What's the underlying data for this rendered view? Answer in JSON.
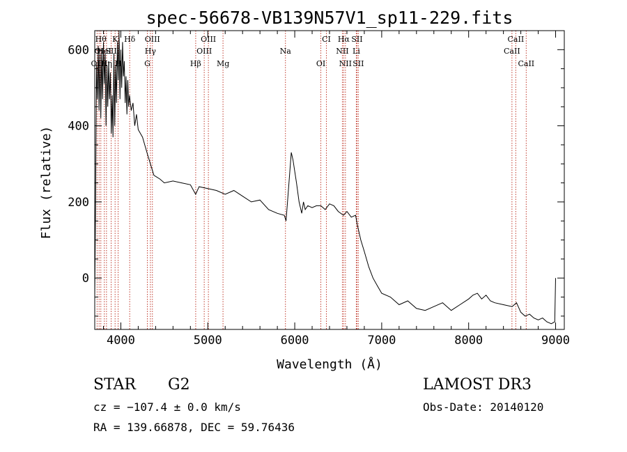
{
  "chart_data": {
    "type": "line",
    "title": "spec-56678-VB139N57V1_sp11-229.fits",
    "xlabel": "Wavelength (Å)",
    "ylabel": "Flux (relative)",
    "xlim": [
      3700,
      9100
    ],
    "ylim": [
      -135,
      650
    ],
    "xticks": [
      4000,
      5000,
      6000,
      7000,
      8000,
      9000
    ],
    "yticks": [
      0,
      200,
      400,
      600
    ],
    "series": [
      {
        "name": "spectrum",
        "x": [
          3700,
          3710,
          3720,
          3730,
          3740,
          3750,
          3760,
          3770,
          3780,
          3790,
          3800,
          3810,
          3820,
          3830,
          3840,
          3850,
          3860,
          3870,
          3880,
          3890,
          3900,
          3910,
          3920,
          3930,
          3940,
          3950,
          3960,
          3970,
          3980,
          3990,
          4000,
          4010,
          4020,
          4030,
          4040,
          4050,
          4060,
          4070,
          4080,
          4090,
          4100,
          4120,
          4140,
          4160,
          4180,
          4200,
          4250,
          4300,
          4340,
          4380,
          4450,
          4500,
          4600,
          4700,
          4800,
          4860,
          4900,
          5000,
          5100,
          5200,
          5300,
          5400,
          5500,
          5600,
          5700,
          5800,
          5880,
          5900,
          5920,
          5940,
          5960,
          5980,
          6000,
          6020,
          6050,
          6080,
          6100,
          6120,
          6150,
          6200,
          6250,
          6300,
          6350,
          6400,
          6450,
          6500,
          6560,
          6600,
          6650,
          6700,
          6720,
          6760,
          6800,
          6850,
          6900,
          6950,
          7000,
          7100,
          7200,
          7300,
          7400,
          7500,
          7600,
          7700,
          7800,
          7900,
          8000,
          8050,
          8100,
          8150,
          8200,
          8250,
          8300,
          8400,
          8500,
          8550,
          8600,
          8650,
          8700,
          8750,
          8800,
          8850,
          8900,
          8950,
          8990,
          9000
        ],
        "y": [
          -50,
          200,
          560,
          470,
          610,
          440,
          590,
          420,
          600,
          470,
          620,
          510,
          590,
          400,
          560,
          450,
          570,
          470,
          540,
          380,
          480,
          370,
          590,
          400,
          560,
          460,
          620,
          520,
          650,
          470,
          600,
          500,
          620,
          530,
          570,
          460,
          530,
          430,
          520,
          450,
          480,
          440,
          460,
          400,
          430,
          390,
          370,
          330,
          300,
          270,
          260,
          250,
          255,
          250,
          245,
          220,
          240,
          235,
          230,
          220,
          230,
          215,
          200,
          205,
          180,
          170,
          165,
          150,
          210,
          270,
          330,
          310,
          280,
          250,
          200,
          170,
          200,
          180,
          190,
          185,
          190,
          190,
          180,
          195,
          190,
          175,
          165,
          175,
          160,
          165,
          140,
          100,
          70,
          30,
          0,
          -20,
          -40,
          -50,
          -70,
          -60,
          -80,
          -85,
          -75,
          -65,
          -85,
          -70,
          -55,
          -45,
          -40,
          -55,
          -45,
          -60,
          -65,
          -70,
          -75,
          -65,
          -90,
          -100,
          -95,
          -105,
          -110,
          -105,
          -115,
          -120,
          -115,
          0
        ]
      }
    ],
    "lines": [
      {
        "wl": 3727,
        "labels": [
          "OII"
        ],
        "rows": [
          3
        ]
      },
      {
        "wl": 3750,
        "labels": [
          "OI"
        ],
        "rows": [
          2
        ]
      },
      {
        "wl": 3770,
        "labels": [
          "Hθ"
        ],
        "rows": [
          1
        ]
      },
      {
        "wl": 3810,
        "labels": [
          "HeI"
        ],
        "rows": [
          2
        ]
      },
      {
        "wl": 3835,
        "labels": [
          "Hη"
        ],
        "rows": [
          3
        ]
      },
      {
        "wl": 3889,
        "labels": [
          "SII"
        ],
        "rows": [
          2
        ]
      },
      {
        "wl": 3934,
        "labels": [
          "K"
        ],
        "rows": [
          1
        ]
      },
      {
        "wl": 3969,
        "labels": [
          "H"
        ],
        "rows": [
          3
        ]
      },
      {
        "wl": 4102,
        "labels": [
          "Hδ"
        ],
        "rows": [
          1
        ]
      },
      {
        "wl": 4305,
        "labels": [
          "G"
        ],
        "rows": [
          3
        ]
      },
      {
        "wl": 4340,
        "labels": [
          "Hγ"
        ],
        "rows": [
          2
        ]
      },
      {
        "wl": 4363,
        "labels": [
          "OIII"
        ],
        "rows": [
          1
        ]
      },
      {
        "wl": 4861,
        "labels": [
          "Hβ"
        ],
        "rows": [
          3
        ]
      },
      {
        "wl": 4959,
        "labels": [
          "OIII"
        ],
        "rows": [
          2
        ]
      },
      {
        "wl": 5007,
        "labels": [
          "OIII"
        ],
        "rows": [
          1
        ]
      },
      {
        "wl": 5175,
        "labels": [
          "Mg"
        ],
        "rows": [
          3
        ]
      },
      {
        "wl": 5893,
        "labels": [
          "Na"
        ],
        "rows": [
          2
        ]
      },
      {
        "wl": 6300,
        "labels": [
          "OI"
        ],
        "rows": [
          3
        ]
      },
      {
        "wl": 6364,
        "labels": [
          "CI"
        ],
        "rows": [
          1
        ]
      },
      {
        "wl": 6548,
        "labels": [
          "NII"
        ],
        "rows": [
          2
        ]
      },
      {
        "wl": 6563,
        "labels": [
          "Hα"
        ],
        "rows": [
          1
        ]
      },
      {
        "wl": 6583,
        "labels": [
          "NII"
        ],
        "rows": [
          3
        ]
      },
      {
        "wl": 6708,
        "labels": [
          "Li"
        ],
        "rows": [
          2
        ]
      },
      {
        "wl": 6716,
        "labels": [
          "SII"
        ],
        "rows": [
          1
        ]
      },
      {
        "wl": 6731,
        "labels": [
          "SII"
        ],
        "rows": [
          3
        ]
      },
      {
        "wl": 8498,
        "labels": [
          "CaII"
        ],
        "rows": [
          2
        ]
      },
      {
        "wl": 8542,
        "labels": [
          "CaII"
        ],
        "rows": [
          1
        ]
      },
      {
        "wl": 8662,
        "labels": [
          "CaII"
        ],
        "rows": [
          3
        ]
      }
    ]
  },
  "info": {
    "object_class": "STAR",
    "subclass": "G2",
    "redshift": "cz = −107.4 ± 0.0 km/s",
    "coords": "RA = 139.66878, DEC =  59.76436",
    "survey": "LAMOST DR3",
    "obs_date": "Obs-Date: 20140120"
  },
  "colors": {
    "line_marker": "#c0392b",
    "spectrum": "#000000"
  }
}
